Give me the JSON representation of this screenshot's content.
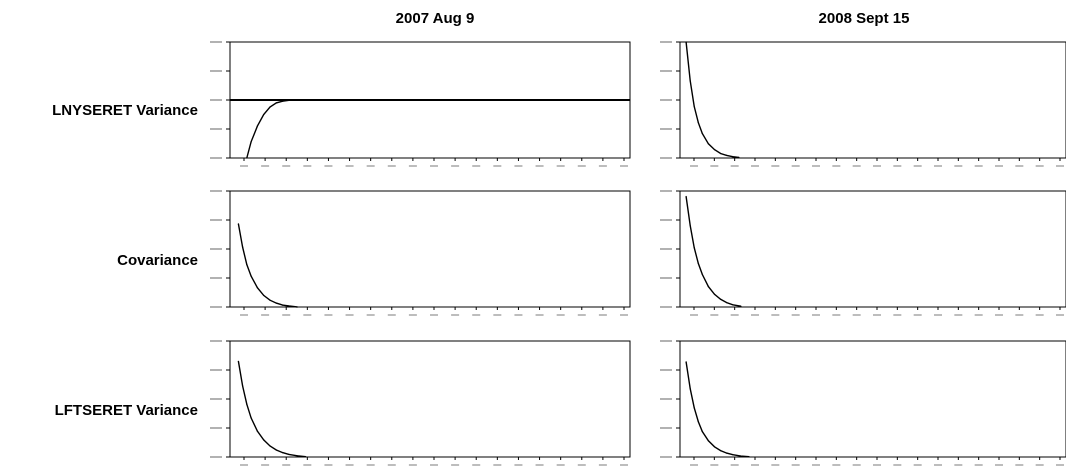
{
  "columns": [
    {
      "title": "2007 Aug 9"
    },
    {
      "title": "2008 Sept 15"
    }
  ],
  "rows": [
    {
      "label": "LNYSERET Variance"
    },
    {
      "label": "Covariance"
    },
    {
      "label": "LFTSERET Variance"
    }
  ],
  "chart_data": [
    {
      "type": "line",
      "panel": "LNYSERET Variance / 2007 Aug 9",
      "x": [
        0.8,
        1.0,
        1.3,
        1.6,
        1.9,
        2.2,
        2.5,
        2.8,
        3.0,
        19
      ],
      "series": [
        {
          "values": [
            -1.0,
            -0.72,
            -0.45,
            -0.25,
            -0.12,
            -0.05,
            -0.02,
            -0.005,
            0,
            0
          ]
        }
      ],
      "ylim": [
        -1.0,
        1.0
      ],
      "hline": 0,
      "x_labels_shown": false
    },
    {
      "type": "line",
      "panel": "LNYSERET Variance / 2008 Sept 15",
      "x": [
        0.3,
        0.5,
        0.7,
        0.9,
        1.1,
        1.4,
        1.7,
        2.0,
        2.3,
        2.6,
        2.9
      ],
      "series": [
        {
          "values": [
            180,
            120,
            80,
            55,
            38,
            22,
            13,
            7,
            4,
            2,
            1
          ]
        }
      ],
      "ylim": [
        0,
        180
      ],
      "x_labels_shown": false
    },
    {
      "type": "line",
      "panel": "Covariance / 2007 Aug 9",
      "x": [
        0.4,
        0.6,
        0.8,
        1.0,
        1.3,
        1.6,
        1.9,
        2.2,
        2.5,
        2.8,
        3.2
      ],
      "series": [
        {
          "values": [
            86,
            62,
            44,
            32,
            20,
            12,
            7,
            4,
            2,
            1,
            0
          ]
        }
      ],
      "ylim": [
        0,
        120
      ],
      "x_labels_shown": false
    },
    {
      "type": "line",
      "panel": "Covariance / 2008 Sept 15",
      "x": [
        0.3,
        0.5,
        0.7,
        0.9,
        1.1,
        1.4,
        1.7,
        2.0,
        2.3,
        2.6,
        3.0
      ],
      "series": [
        {
          "values": [
            400,
            295,
            215,
            158,
            118,
            74,
            46,
            28,
            16,
            8,
            3
          ]
        }
      ],
      "ylim": [
        0,
        420
      ],
      "x_labels_shown": false
    },
    {
      "type": "line",
      "panel": "LFTSERET Variance / 2007 Aug 9",
      "x": [
        0.4,
        0.6,
        0.8,
        1.0,
        1.3,
        1.6,
        1.9,
        2.2,
        2.5,
        2.8,
        3.2,
        3.6
      ],
      "series": [
        {
          "values": [
            3300,
            2450,
            1820,
            1350,
            890,
            590,
            380,
            240,
            150,
            90,
            40,
            10
          ]
        }
      ],
      "ylim": [
        0,
        4000
      ],
      "x_labels_shown": false
    },
    {
      "type": "line",
      "panel": "LFTSERET Variance / 2008 Sept 15",
      "x": [
        0.3,
        0.5,
        0.7,
        0.9,
        1.1,
        1.4,
        1.7,
        2.0,
        2.3,
        2.6,
        3.0,
        3.4
      ],
      "series": [
        {
          "values": [
            820,
            590,
            425,
            305,
            220,
            140,
            88,
            55,
            34,
            20,
            8,
            3
          ]
        }
      ],
      "ylim": [
        0,
        1000
      ],
      "x_labels_shown": false
    }
  ]
}
